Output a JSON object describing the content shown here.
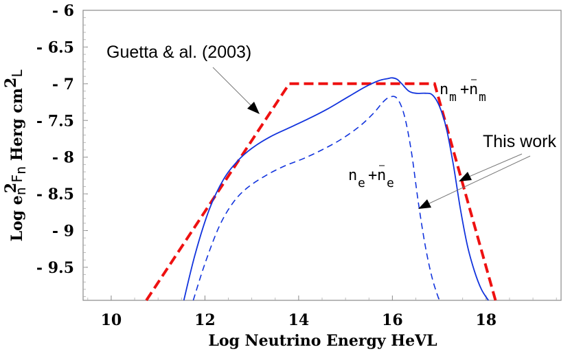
{
  "chart_data": {
    "type": "line",
    "title": "",
    "xlabel": "Log Neutrino Energy HeVL",
    "ylabel_parts": {
      "prefix": "Log e",
      "sub_n": "n",
      "sup_2": "2",
      "F": "F",
      "sub_n2": "n",
      "mid": " Herg cm",
      "sup_2b": "2",
      "suffix": "L"
    },
    "xlim": [
      9.4,
      19.6
    ],
    "ylim": [
      -6,
      -9.95
    ],
    "x_ticks": [
      10,
      12,
      14,
      16,
      18
    ],
    "x_tick_labels": [
      "10",
      "12",
      "14",
      "16",
      "18"
    ],
    "y_ticks": [
      -6,
      -6.5,
      -7,
      -7.5,
      -8,
      -8.5,
      -9,
      -9.5
    ],
    "y_tick_labels": [
      "- 6",
      "- 6.5",
      "- 7",
      "- 7.5",
      "- 8",
      "- 8.5",
      "- 9",
      "- 9.5"
    ],
    "series": [
      {
        "name": "Guetta & al. (2003)",
        "color": "#ee1111",
        "style": "dashed-thick",
        "x": [
          10.75,
          13.8,
          16.9,
          18.2
        ],
        "y": [
          -9.95,
          -7.0,
          -7.0,
          -9.95
        ]
      },
      {
        "name": "This work nm+nm",
        "color": "#1133dd",
        "style": "solid",
        "x": [
          11.55,
          11.8,
          12.1,
          12.4,
          12.7,
          13.0,
          13.4,
          13.8,
          14.2,
          14.6,
          15.0,
          15.4,
          15.7,
          15.9,
          16.0,
          16.1,
          16.2,
          16.35,
          16.5,
          16.7,
          16.85,
          17.0,
          17.15,
          17.3,
          17.45,
          17.6,
          17.75,
          17.9,
          18.05
        ],
        "y": [
          -9.95,
          -9.3,
          -8.7,
          -8.3,
          -8.05,
          -7.88,
          -7.72,
          -7.6,
          -7.48,
          -7.35,
          -7.2,
          -7.05,
          -6.96,
          -6.93,
          -6.92,
          -6.94,
          -7.0,
          -7.1,
          -7.13,
          -7.13,
          -7.15,
          -7.3,
          -7.6,
          -8.1,
          -8.7,
          -9.2,
          -9.55,
          -9.8,
          -9.95
        ]
      },
      {
        "name": "This work ne+ne",
        "color": "#1133dd",
        "style": "dashed-thin",
        "x": [
          11.75,
          12.0,
          12.3,
          12.6,
          12.9,
          13.3,
          13.7,
          14.1,
          14.5,
          14.9,
          15.3,
          15.6,
          15.8,
          15.95,
          16.1,
          16.25,
          16.4,
          16.55,
          16.7,
          16.85,
          17.0
        ],
        "y": [
          -9.95,
          -9.45,
          -8.95,
          -8.62,
          -8.42,
          -8.25,
          -8.12,
          -8.02,
          -7.9,
          -7.76,
          -7.58,
          -7.4,
          -7.25,
          -7.18,
          -7.2,
          -7.42,
          -7.9,
          -8.6,
          -9.2,
          -9.65,
          -9.95
        ]
      }
    ],
    "annotations": {
      "guetta_label": "Guetta & al. (2003)",
      "this_work_label": "This work",
      "nm_label_n1": "n",
      "nm_label_sub1": "m",
      "nm_label_plus": "+",
      "nm_label_n2": "n",
      "nm_label_sub2": "m",
      "ne_label_n1": "n",
      "ne_label_sub1": "e",
      "ne_label_plus": "+",
      "ne_label_n2": "n",
      "ne_label_sub2": "e"
    },
    "grid": false,
    "legend": "none"
  }
}
